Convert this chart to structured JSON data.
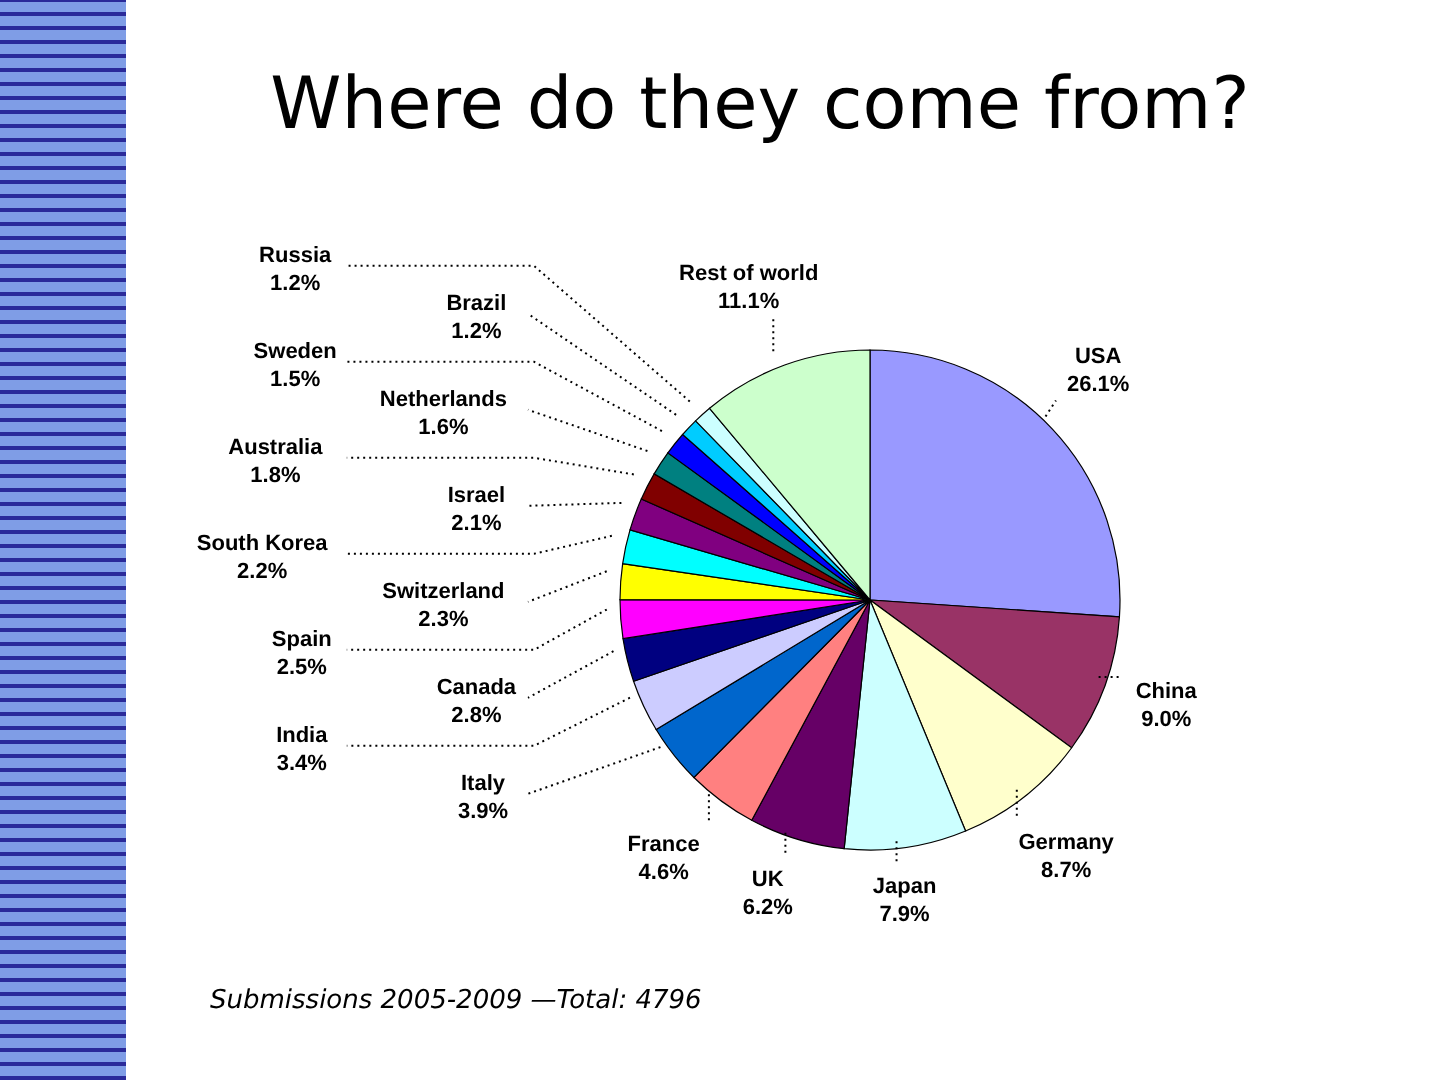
{
  "chart_data": {
    "type": "pie",
    "title": "Where do they come from?",
    "categories": [
      "USA",
      "China",
      "Germany",
      "Japan",
      "UK",
      "France",
      "Italy",
      "India",
      "Canada",
      "Spain",
      "Switzerland",
      "South Korea",
      "Israel",
      "Australia",
      "Netherlands",
      "Sweden",
      "Brazil",
      "Russia",
      "Rest of world"
    ],
    "values": [
      26.1,
      9.0,
      8.7,
      7.9,
      6.2,
      4.6,
      3.9,
      3.4,
      2.8,
      2.5,
      2.3,
      2.2,
      2.1,
      1.8,
      1.6,
      1.5,
      1.2,
      1.2,
      11.1
    ],
    "value_labels": [
      "26.1%",
      "9.0%",
      "8.7%",
      "7.9%",
      "6.2%",
      "4.6%",
      "3.9%",
      "3.4%",
      "2.8%",
      "2.5%",
      "2.3%",
      "2.2%",
      "2.1%",
      "1.8%",
      "1.6%",
      "1.5%",
      "1.2%",
      "1.2%",
      "11.1%"
    ],
    "colors": [
      "#9999ff",
      "#993366",
      "#ffffcc",
      "#ccffff",
      "#660066",
      "#ff8080",
      "#0066cc",
      "#ccccff",
      "#000080",
      "#ff00ff",
      "#ffff00",
      "#00ffff",
      "#800080",
      "#800000",
      "#008080",
      "#0000ff",
      "#00ccff",
      "#ccffff",
      "#ccffcc"
    ],
    "annotations": [
      "Submissions 2005-2009 —Total: 4796"
    ]
  }
}
